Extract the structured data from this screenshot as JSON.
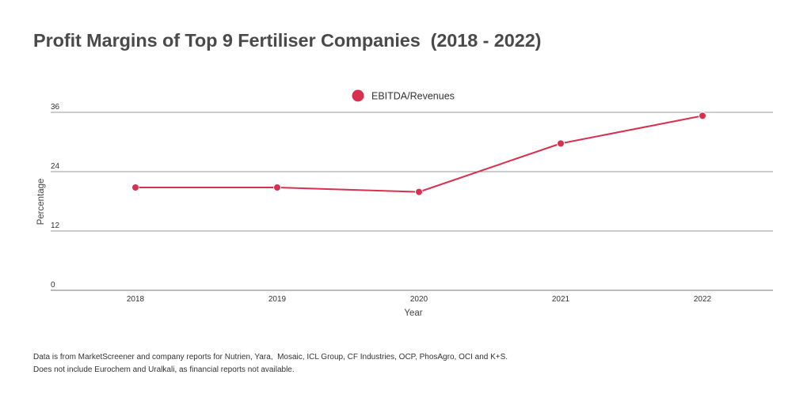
{
  "chart_data": {
    "type": "line",
    "title": "Profit Margins of Top 9 Fertiliser Companies  (2018 - 2022)",
    "xlabel": "Year",
    "ylabel": "Percentage",
    "categories": [
      "2018",
      "2019",
      "2020",
      "2021",
      "2022"
    ],
    "series": [
      {
        "name": "EBITDA/Revenues",
        "values": [
          20.8,
          20.8,
          19.9,
          29.7,
          35.3
        ],
        "color": "#d9304f"
      }
    ],
    "yticks": [
      "0",
      "12",
      "24",
      "36"
    ],
    "ylim": [
      0,
      36
    ],
    "grid": true,
    "legend_position": "top-center"
  },
  "footnote": {
    "lines": [
      "Data is from MarketScreener and company reports for Nutrien, Yara,  Mosaic, ICL Group, CF Industries, OCP, PhosAgro, OCI and K+S.",
      "Does not include Eurochem and Uralkali, as financial reports not available."
    ]
  },
  "colors": {
    "series": "#d9304f",
    "grid": "#999999",
    "axis": "#777777",
    "text": "#4a4a4a"
  }
}
